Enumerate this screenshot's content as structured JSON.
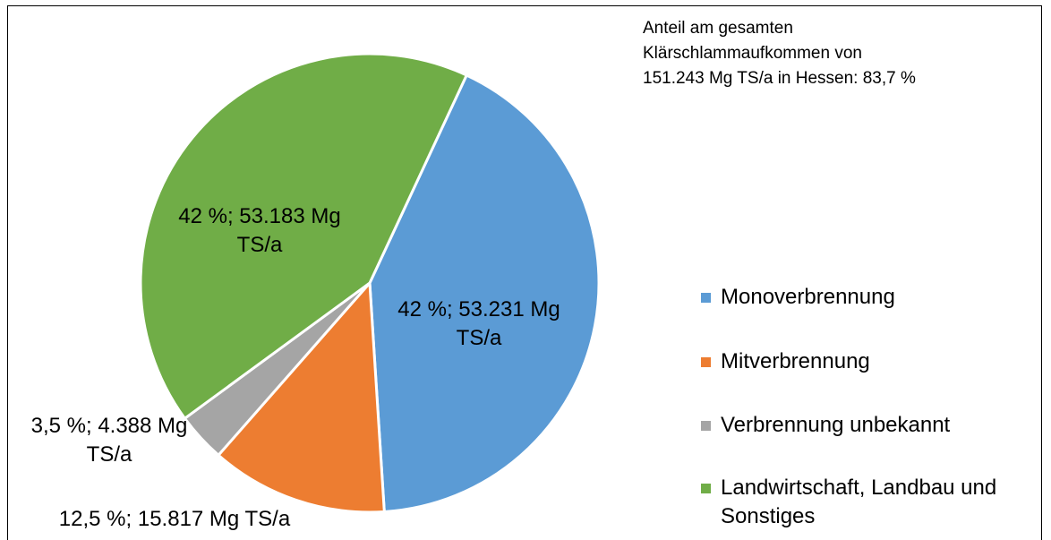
{
  "chart_data": {
    "type": "pie",
    "annotation": [
      "Anteil am gesamten",
      "Klärschlammaufkommen von",
      "151.243 Mg TS/a in Hessen: 83,7 %"
    ],
    "categories": [
      "Monoverbrennung",
      "Mitverbrennung",
      "Verbrennung unbekannt",
      "Landwirtschaft, Landbau und Sonstiges"
    ],
    "values": [
      53231,
      15817,
      4388,
      53183
    ],
    "value_labels": [
      "42 %; 53.231 Mg TS/a",
      "12,5 %; 15.817 Mg TS/a",
      "3,5 %; 4.388 Mg TS/a",
      "42 %; 53.183 Mg TS/a"
    ],
    "colors": [
      "#5b9bd5",
      "#ed7d31",
      "#a5a5a5",
      "#70ad47"
    ]
  }
}
